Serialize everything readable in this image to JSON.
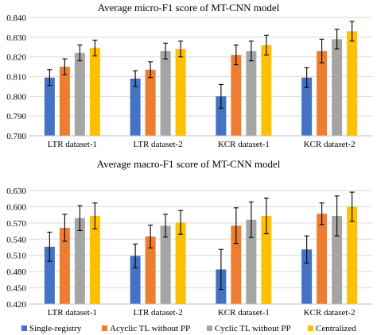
{
  "colors": {
    "Single-registry": "#4472C4",
    "Acyclic TL without PP": "#ED7D31",
    "Cyclic TL without PP": "#A5A5A5",
    "Centralized": "#FFC000",
    "grid": "#d9d9d9",
    "errorbar": "#000000"
  },
  "legend": {
    "items": [
      {
        "label": "Single-registry",
        "color": "#4472C4"
      },
      {
        "label": "Acyclic TL without PP",
        "color": "#ED7D31"
      },
      {
        "label": "Cyclic TL without PP",
        "color": "#A5A5A5"
      },
      {
        "label": "Centralized",
        "color": "#FFC000"
      }
    ]
  },
  "chart_data": [
    {
      "type": "bar",
      "title": "Average micro-F1 score of MT-CNN model",
      "xlabel": "",
      "ylabel": "",
      "ylim": [
        0.78,
        0.84
      ],
      "yticks": [
        "0.780",
        "0.790",
        "0.800",
        "0.810",
        "0.820",
        "0.830",
        "0.840"
      ],
      "ytick_values": [
        0.78,
        0.79,
        0.8,
        0.81,
        0.82,
        0.83,
        0.84
      ],
      "grid": true,
      "categories": [
        "LTR dataset-1",
        "LTR dataset-2",
        "KCR dataset-1",
        "KCR dataset-2"
      ],
      "series": [
        {
          "name": "Single-registry",
          "values": [
            0.8095,
            0.809,
            0.8,
            0.8095
          ],
          "errors": [
            0.004,
            0.004,
            0.006,
            0.005
          ]
        },
        {
          "name": "Acyclic TL without PP",
          "values": [
            0.815,
            0.8135,
            0.821,
            0.823
          ],
          "errors": [
            0.004,
            0.004,
            0.005,
            0.006
          ]
        },
        {
          "name": "Cyclic TL without PP",
          "values": [
            0.822,
            0.823,
            0.823,
            0.829
          ],
          "errors": [
            0.004,
            0.004,
            0.005,
            0.005
          ]
        },
        {
          "name": "Centralized",
          "values": [
            0.8245,
            0.824,
            0.826,
            0.833
          ],
          "errors": [
            0.004,
            0.004,
            0.005,
            0.005
          ]
        }
      ]
    },
    {
      "type": "bar",
      "title": "Average macro-F1 score of MT-CNN model",
      "xlabel": "",
      "ylabel": "",
      "ylim": [
        0.42,
        0.63
      ],
      "yticks": [
        "0.420",
        "0.450",
        "0.480",
        "0.510",
        "0.540",
        "0.570",
        "0.600",
        "0.630"
      ],
      "ytick_values": [
        0.42,
        0.45,
        0.48,
        0.51,
        0.54,
        0.57,
        0.6,
        0.63
      ],
      "grid": true,
      "categories": [
        "LTR dataset-1",
        "LTR dataset-2",
        "KCR dataset-1",
        "KCR dataset-2"
      ],
      "series": [
        {
          "name": "Single-registry",
          "values": [
            0.526,
            0.509,
            0.484,
            0.521
          ],
          "errors": [
            0.027,
            0.022,
            0.037,
            0.025
          ]
        },
        {
          "name": "Acyclic TL without PP",
          "values": [
            0.561,
            0.545,
            0.565,
            0.587
          ],
          "errors": [
            0.025,
            0.021,
            0.033,
            0.02
          ]
        },
        {
          "name": "Cyclic TL without PP",
          "values": [
            0.579,
            0.565,
            0.576,
            0.583
          ],
          "errors": [
            0.023,
            0.021,
            0.033,
            0.037
          ]
        },
        {
          "name": "Centralized",
          "values": [
            0.583,
            0.571,
            0.583,
            0.6
          ],
          "errors": [
            0.024,
            0.022,
            0.033,
            0.027
          ]
        }
      ]
    }
  ]
}
